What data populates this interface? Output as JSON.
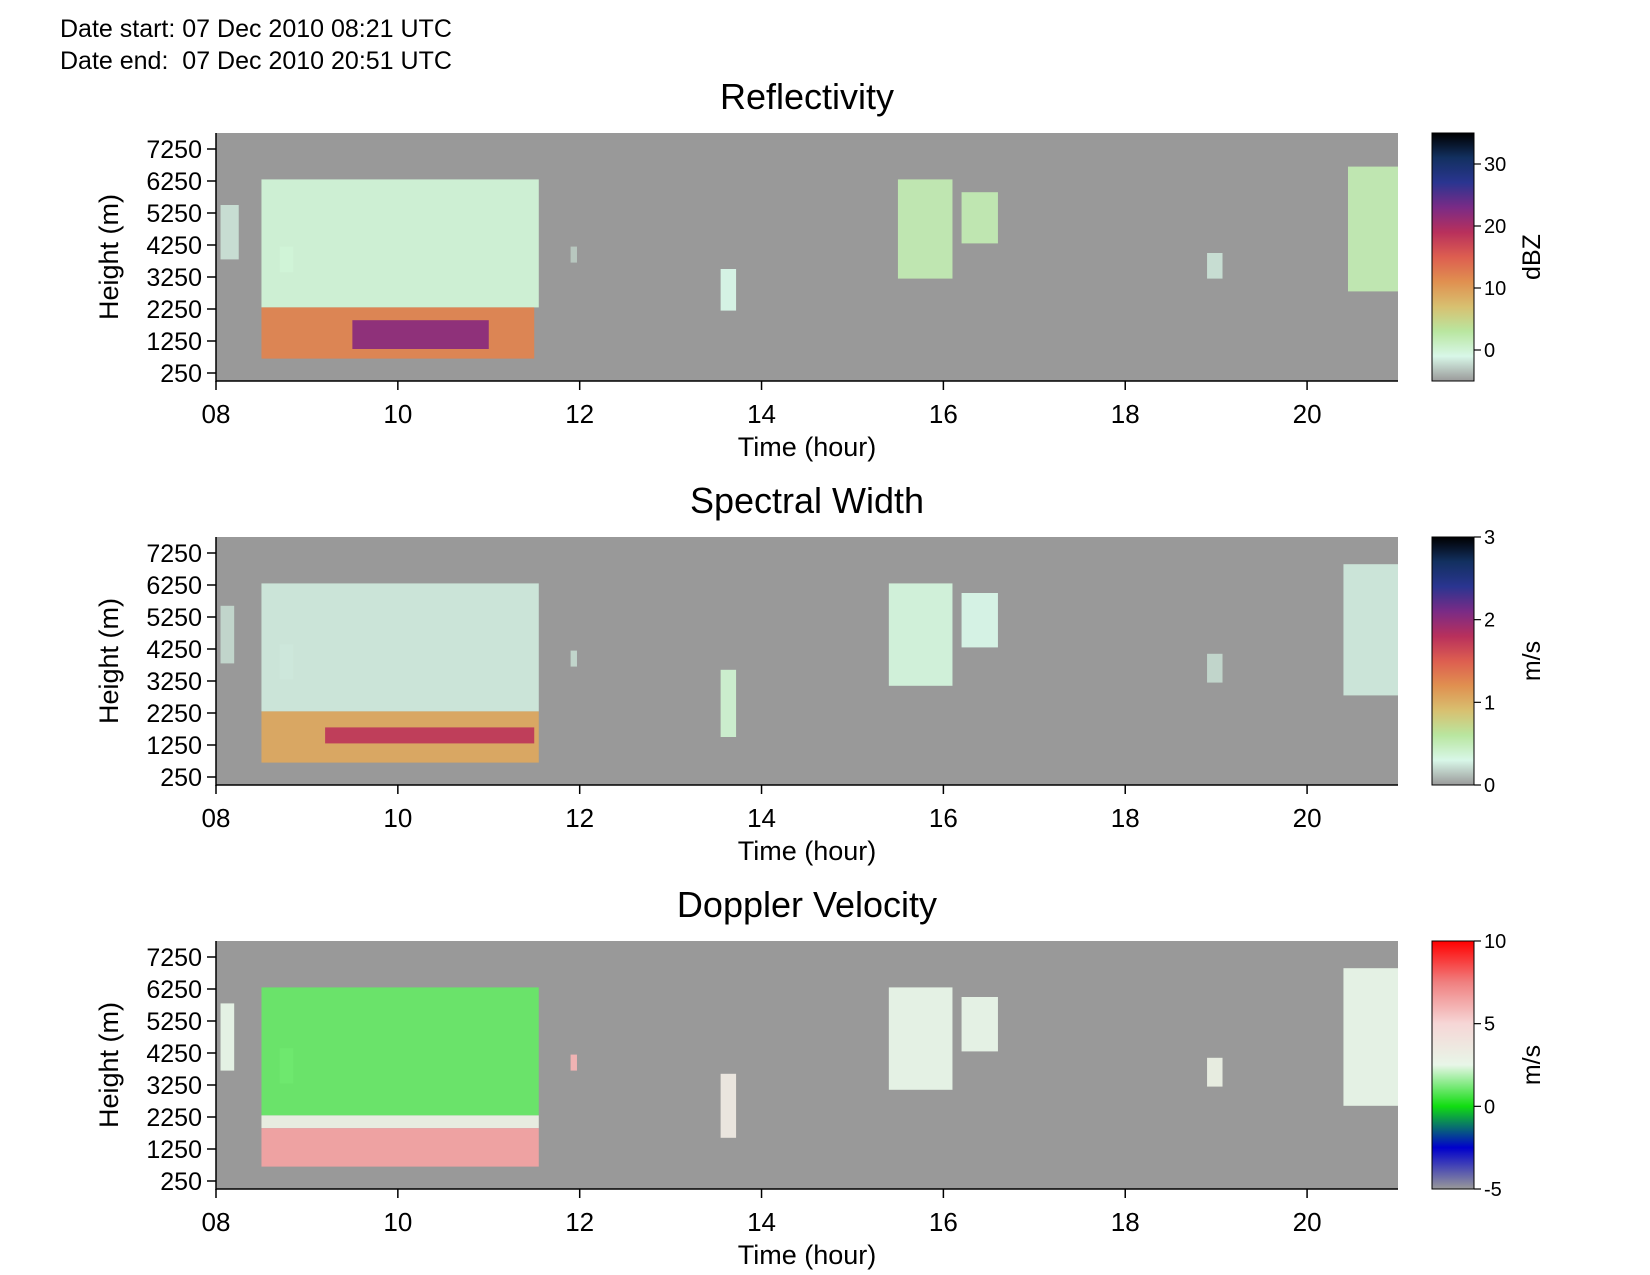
{
  "header": {
    "date_start": "Date start: 07 Dec 2010 08:21 UTC",
    "date_end": "Date end:  07 Dec 2010 20:51 UTC"
  },
  "chart_data": [
    {
      "type": "heatmap",
      "title": "Reflectivity",
      "xlabel": "Time (hour)",
      "ylabel": "Height (m)",
      "x_ticks": [
        "08",
        "10",
        "12",
        "14",
        "16",
        "18",
        "20"
      ],
      "y_ticks": [
        "250",
        "1250",
        "2250",
        "3250",
        "4250",
        "5250",
        "6250",
        "7250"
      ],
      "xlim": [
        8,
        21
      ],
      "ylim": [
        0,
        7750
      ],
      "colorbar": {
        "label": "dBZ",
        "ticks": [
          "0",
          "10",
          "20",
          "30"
        ],
        "tick_values": [
          0,
          10,
          20,
          30
        ],
        "range": [
          -5,
          35
        ],
        "stops": [
          "#9a9a9a",
          "#d8f7e8",
          "#b9e6a0",
          "#d8c070",
          "#e09050",
          "#dd5e50",
          "#b8305c",
          "#7a2b86",
          "#2a3590",
          "#123060",
          "#000000"
        ]
      },
      "background": "#999999",
      "regions": [
        {
          "t": [
            8.05,
            8.25
          ],
          "h": [
            3800,
            5500
          ],
          "v": -2
        },
        {
          "t": [
            8.7,
            8.85
          ],
          "h": [
            3400,
            4200
          ],
          "v": -1
        },
        {
          "t": [
            8.5,
            11.55
          ],
          "h": [
            2300,
            6300
          ],
          "v": 0
        },
        {
          "t": [
            8.5,
            11.5
          ],
          "h": [
            700,
            2300
          ],
          "v": 12
        },
        {
          "t": [
            9.5,
            11.0
          ],
          "h": [
            1000,
            1900
          ],
          "v": 22
        },
        {
          "t": [
            11.9,
            11.97
          ],
          "h": [
            3700,
            4200
          ],
          "v": -3
        },
        {
          "t": [
            13.55,
            13.72
          ],
          "h": [
            2200,
            3500
          ],
          "v": -1
        },
        {
          "t": [
            15.5,
            16.1
          ],
          "h": [
            3200,
            6300
          ],
          "v": 2
        },
        {
          "t": [
            16.2,
            16.6
          ],
          "h": [
            4300,
            5900
          ],
          "v": 2
        },
        {
          "t": [
            18.9,
            19.07
          ],
          "h": [
            3200,
            4000
          ],
          "v": -2
        },
        {
          "t": [
            20.45,
            21.0
          ],
          "h": [
            2800,
            6700
          ],
          "v": 2
        }
      ]
    },
    {
      "type": "heatmap",
      "title": "Spectral Width",
      "xlabel": "Time (hour)",
      "ylabel": "Height (m)",
      "x_ticks": [
        "08",
        "10",
        "12",
        "14",
        "16",
        "18",
        "20"
      ],
      "y_ticks": [
        "250",
        "1250",
        "2250",
        "3250",
        "4250",
        "5250",
        "6250",
        "7250"
      ],
      "xlim": [
        8,
        21
      ],
      "ylim": [
        0,
        7750
      ],
      "colorbar": {
        "label": "m/s",
        "ticks": [
          "0",
          "1",
          "2",
          "3"
        ],
        "tick_values": [
          0,
          1,
          2,
          3
        ],
        "range": [
          0,
          3
        ],
        "stops": [
          "#9a9a9a",
          "#d8f7e8",
          "#b9e6a0",
          "#d8c070",
          "#e09050",
          "#dd5e50",
          "#b8305c",
          "#7a2b86",
          "#2a3590",
          "#123060",
          "#000000"
        ]
      },
      "background": "#999999",
      "regions": [
        {
          "t": [
            8.05,
            8.2
          ],
          "h": [
            3800,
            5600
          ],
          "v": 0.2
        },
        {
          "t": [
            8.7,
            8.85
          ],
          "h": [
            3300,
            4400
          ],
          "v": 0.2
        },
        {
          "t": [
            8.5,
            11.55
          ],
          "h": [
            2300,
            6300
          ],
          "v": 0.25
        },
        {
          "t": [
            8.5,
            11.55
          ],
          "h": [
            700,
            2300
          ],
          "v": 1.05
        },
        {
          "t": [
            9.2,
            11.5
          ],
          "h": [
            1300,
            1800
          ],
          "v": 1.75
        },
        {
          "t": [
            11.9,
            11.97
          ],
          "h": [
            3700,
            4200
          ],
          "v": 0.2
        },
        {
          "t": [
            13.55,
            13.72
          ],
          "h": [
            1500,
            3600
          ],
          "v": 0.4
        },
        {
          "t": [
            15.4,
            16.1
          ],
          "h": [
            3100,
            6300
          ],
          "v": 0.35
        },
        {
          "t": [
            16.2,
            16.6
          ],
          "h": [
            4300,
            6000
          ],
          "v": 0.3
        },
        {
          "t": [
            18.9,
            19.07
          ],
          "h": [
            3200,
            4100
          ],
          "v": 0.2
        },
        {
          "t": [
            20.4,
            21.0
          ],
          "h": [
            2800,
            6900
          ],
          "v": 0.25
        }
      ]
    },
    {
      "type": "heatmap",
      "title": "Doppler Velocity",
      "xlabel": "Time (hour)",
      "ylabel": "Height (m)",
      "x_ticks": [
        "08",
        "10",
        "12",
        "14",
        "16",
        "18",
        "20"
      ],
      "y_ticks": [
        "250",
        "1250",
        "2250",
        "3250",
        "4250",
        "5250",
        "6250",
        "7250"
      ],
      "xlim": [
        8,
        21
      ],
      "ylim": [
        0,
        7750
      ],
      "colorbar": {
        "label": "m/s",
        "ticks": [
          "-5",
          "0",
          "5",
          "10"
        ],
        "tick_values": [
          -5,
          0,
          5,
          10
        ],
        "range": [
          -5,
          10
        ],
        "stops": [
          "#999999",
          "#0000cc",
          "#11dd11",
          "#e8f6e8",
          "#f6d6d6",
          "#f08080",
          "#ff0000"
        ]
      },
      "background": "#999999",
      "regions": [
        {
          "t": [
            8.05,
            8.2
          ],
          "h": [
            3700,
            5800
          ],
          "v": 2.5
        },
        {
          "t": [
            8.7,
            8.85
          ],
          "h": [
            3300,
            4400
          ],
          "v": 2.5
        },
        {
          "t": [
            8.5,
            11.55
          ],
          "h": [
            2300,
            6300
          ],
          "v": 1.0
        },
        {
          "t": [
            8.5,
            11.55
          ],
          "h": [
            1900,
            2300
          ],
          "v": 3.0
        },
        {
          "t": [
            8.5,
            11.55
          ],
          "h": [
            700,
            1900
          ],
          "v": 6.5
        },
        {
          "t": [
            11.9,
            11.97
          ],
          "h": [
            3700,
            4200
          ],
          "v": 6.0
        },
        {
          "t": [
            13.55,
            13.72
          ],
          "h": [
            1600,
            3600
          ],
          "v": 3.5
        },
        {
          "t": [
            15.4,
            16.1
          ],
          "h": [
            3100,
            6300
          ],
          "v": 2.5
        },
        {
          "t": [
            16.2,
            16.6
          ],
          "h": [
            4300,
            6000
          ],
          "v": 2.5
        },
        {
          "t": [
            18.9,
            19.07
          ],
          "h": [
            3200,
            4100
          ],
          "v": 3.0
        },
        {
          "t": [
            20.4,
            21.0
          ],
          "h": [
            2600,
            6900
          ],
          "v": 2.5
        }
      ]
    }
  ]
}
